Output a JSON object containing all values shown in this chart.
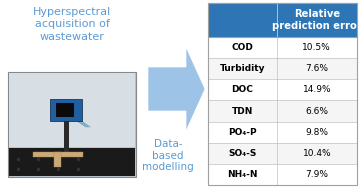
{
  "title_text": "Hyperspectral\nacquisition of\nwastewater",
  "title_color": "#5b9bd5",
  "arrow_label": "Data-\nbased\nmodelling",
  "arrow_label_color": "#5b9bd5",
  "arrow_fill_color": "#9dc3e6",
  "arrow_edge_color": "#c5daef",
  "header_bg": "#2e75b6",
  "header_text": "Relative\nprediction error",
  "header_text_color": "#ffffff",
  "row_labels": [
    "COD",
    "Turbidity",
    "DOC",
    "TDN",
    "PO₄-P",
    "SO₄-S",
    "NH₄-N"
  ],
  "row_values": [
    "10.5%",
    "7.6%",
    "14.9%",
    "6.6%",
    "9.8%",
    "10.4%",
    "7.9%"
  ],
  "table_border_color": "#a0a0a0",
  "row_divider_color": "#c0c0c0",
  "label_fontsize": 6.5,
  "value_fontsize": 6.5,
  "header_fontsize": 7.2,
  "title_fontsize": 8.0,
  "arrow_label_fontsize": 7.5,
  "photo_bg": "#b8c4cc",
  "photo_border": "#888888",
  "photo_wall": "#e0e0e0",
  "photo_table_dark": "#1e1e1e",
  "photo_camera_blue": "#2060a0",
  "photo_camera_dark": "#0a2040"
}
